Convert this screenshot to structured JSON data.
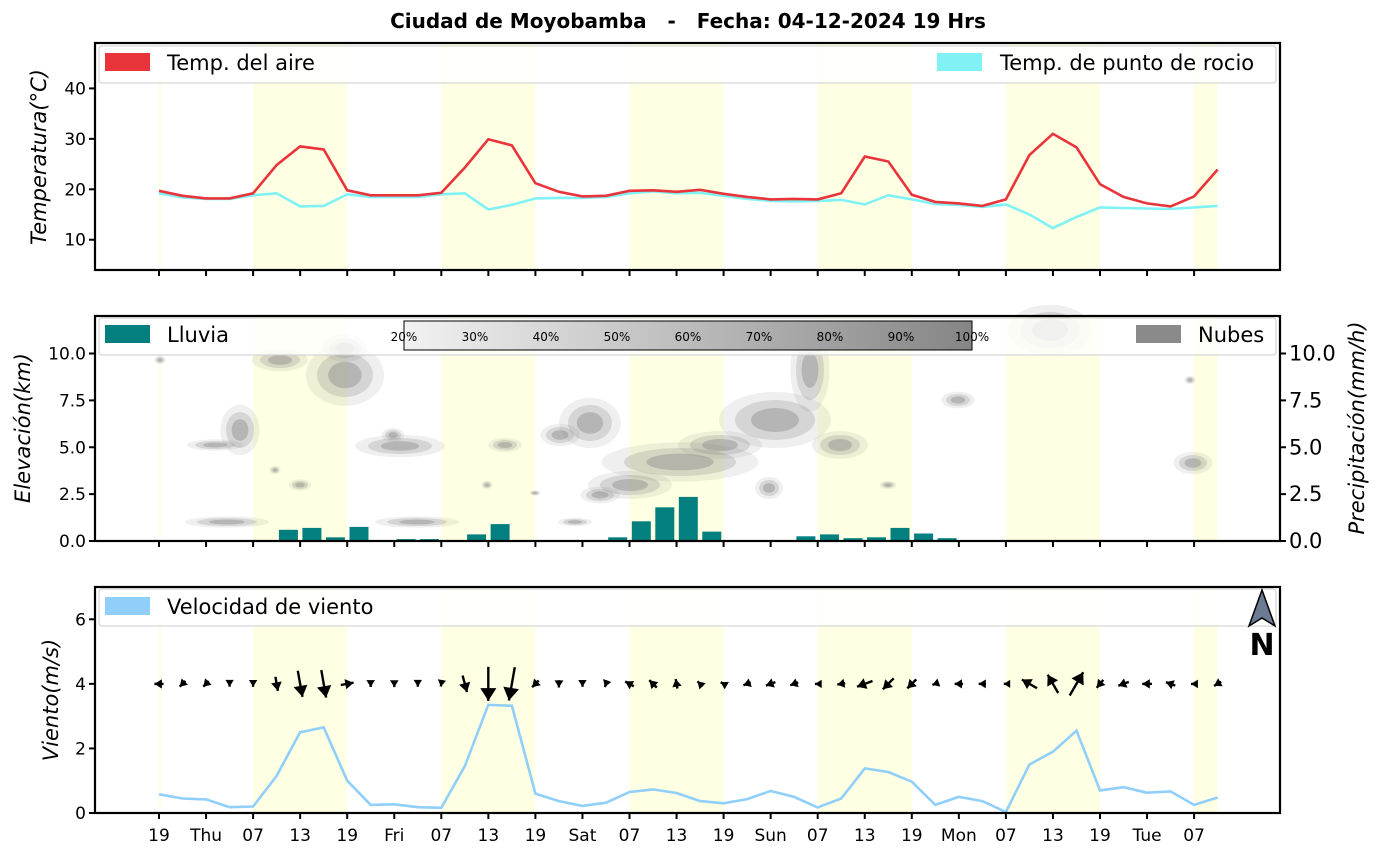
{
  "title": "Ciudad de Moyobamba   -   Fecha: 04-12-2024 19 Hrs",
  "x_tick_labels": [
    "19",
    "Thu",
    "07",
    "13",
    "19",
    "Fri",
    "07",
    "13",
    "19",
    "Sat",
    "07",
    "13",
    "19",
    "Sun",
    "07",
    "13",
    "19",
    "Mon",
    "07",
    "13",
    "19",
    "Tue",
    "07"
  ],
  "colors": {
    "air": "#e8343a",
    "dew": "#80f2f5",
    "rain": "#047f7f",
    "cloud_legend": "#8a8a8a",
    "wind": "#90cff9",
    "day_band": "#ffffe3"
  },
  "chart_data": [
    {
      "type": "line",
      "ylabel": "Temperatura(°C)",
      "ylim": [
        4,
        49
      ],
      "yticks": [
        10,
        20,
        30,
        40
      ],
      "x_start_hour": 19,
      "x_step_hours": 3,
      "series": [
        {
          "name": "Temp. del aire",
          "values": [
            19.7,
            18.7,
            18.2,
            18.2,
            19.2,
            24.8,
            28.5,
            27.9,
            19.8,
            18.8,
            18.8,
            18.8,
            19.3,
            24.3,
            29.9,
            28.7,
            21.2,
            19.5,
            18.6,
            18.7,
            19.7,
            19.8,
            19.5,
            19.9,
            19.1,
            18.5,
            18.0,
            18.1,
            18.0,
            19.2,
            26.5,
            25.5,
            18.9,
            17.5,
            17.2,
            16.7,
            18.0,
            26.8,
            31.0,
            28.3,
            21.0,
            18.5,
            17.2,
            16.6,
            18.6,
            23.9
          ]
        },
        {
          "name": "Temp. de punto de rocio",
          "values": [
            19.2,
            18.4,
            18.1,
            18.1,
            18.8,
            19.2,
            16.6,
            16.7,
            19.0,
            18.5,
            18.5,
            18.5,
            19.0,
            19.2,
            16.0,
            16.9,
            18.2,
            18.3,
            18.3,
            18.5,
            19.2,
            19.6,
            19.2,
            19.3,
            18.7,
            18.1,
            17.7,
            17.6,
            17.7,
            17.9,
            17.0,
            18.8,
            18.0,
            17.1,
            16.9,
            16.5,
            17.0,
            15.0,
            12.3,
            14.5,
            16.4,
            16.3,
            16.2,
            16.1,
            16.4,
            16.7
          ]
        }
      ]
    },
    {
      "type": "bar",
      "ylabel": "Elevación(km)",
      "ylabel_right": "Precipitación(mm/h)",
      "ylim": [
        0,
        12
      ],
      "yticks": [
        0.0,
        2.5,
        5.0,
        7.5,
        10.0
      ],
      "yticks_right": [
        0.0,
        2.5,
        5.0,
        7.5,
        10.0
      ],
      "colorbar_labels": [
        "20%",
        "30%",
        "40%",
        "50%",
        "60%",
        "70%",
        "80%",
        "90%",
        "100%"
      ],
      "series": [
        {
          "name": "Lluvia",
          "values": [
            0,
            0.02,
            0.02,
            0.02,
            0,
            0.6,
            0.7,
            0.2,
            0.75,
            0,
            0.1,
            0.1,
            0,
            0.35,
            0.9,
            0,
            0,
            0,
            0,
            0.2,
            1.05,
            1.8,
            2.35,
            0.5,
            0,
            0,
            0,
            0.25,
            0.35,
            0.15,
            0.2,
            0.7,
            0.4,
            0.15,
            0,
            0,
            0,
            0,
            0,
            0,
            0,
            0,
            0,
            0,
            0,
            0
          ]
        },
        {
          "name": "Nubes",
          "values": []
        }
      ]
    },
    {
      "type": "line",
      "ylabel": "Viento(m/s)",
      "ylim": [
        0,
        7
      ],
      "yticks": [
        0,
        2,
        4,
        6
      ],
      "north_label": "N",
      "series": [
        {
          "name": "Velocidad de viento",
          "values": [
            0.58,
            0.45,
            0.42,
            0.18,
            0.2,
            1.15,
            2.5,
            2.65,
            1.0,
            0.25,
            0.27,
            0.18,
            0.16,
            1.45,
            3.35,
            3.32,
            0.6,
            0.37,
            0.22,
            0.32,
            0.65,
            0.73,
            0.62,
            0.37,
            0.3,
            0.43,
            0.68,
            0.5,
            0.17,
            0.45,
            1.38,
            1.27,
            0.97,
            0.25,
            0.5,
            0.37,
            0.03,
            1.5,
            1.9,
            2.55,
            0.7,
            0.8,
            0.63,
            0.67,
            0.25,
            0.48
          ]
        }
      ],
      "wind_direction_deg": [
        270,
        225,
        225,
        180,
        180,
        170,
        170,
        170,
        80,
        180,
        180,
        180,
        190,
        165,
        180,
        190,
        225,
        180,
        180,
        200,
        300,
        315,
        350,
        315,
        300,
        250,
        250,
        250,
        270,
        260,
        250,
        225,
        225,
        250,
        270,
        270,
        270,
        300,
        330,
        30,
        220,
        250,
        270,
        290,
        270,
        240
      ]
    }
  ]
}
